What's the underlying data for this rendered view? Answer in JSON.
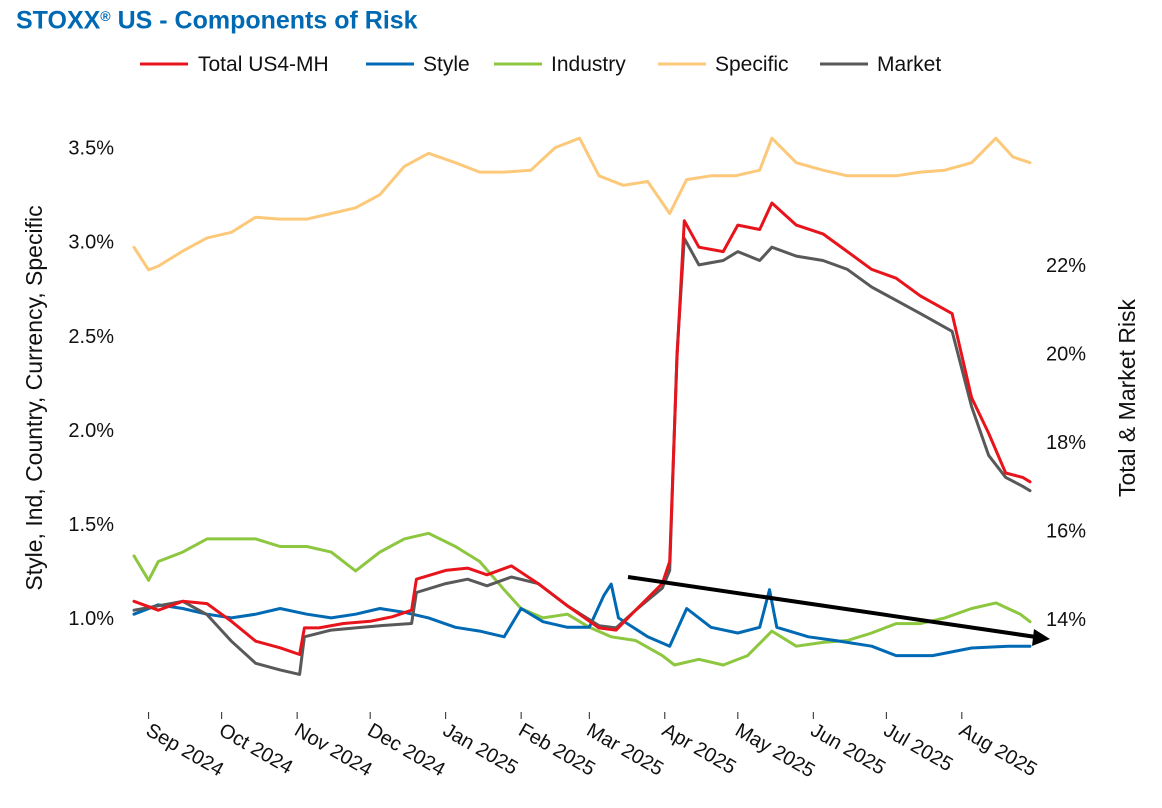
{
  "title": {
    "main": "STOXX",
    "reg": "®",
    "rest": " US - Components of Risk"
  },
  "chart_data": {
    "type": "line",
    "title": "STOXX® US - Components of Risk",
    "ylabel_left": "Style, Ind, Country, Currency, Specific",
    "ylabel_right": "Total & Market Risk",
    "left_axis": {
      "ylim": [
        0.5,
        3.7
      ],
      "ticks": [
        1.0,
        1.5,
        2.0,
        2.5,
        3.0,
        3.5
      ],
      "tick_labels": [
        "1.0%",
        "1.5%",
        "2.0%",
        "2.5%",
        "3.0%",
        "3.5%"
      ]
    },
    "right_axis": {
      "ylim": [
        11.9,
        25.5
      ],
      "ticks": [
        14,
        16,
        18,
        20,
        22
      ],
      "tick_labels": [
        "14%",
        "16%",
        "18%",
        "20%",
        "22%"
      ]
    },
    "x_ticks": [
      "Sep 2024",
      "Oct 2024",
      "Nov 2024",
      "Dec 2024",
      "Jan 2025",
      "Feb 2025",
      "Mar 2025",
      "Apr 2025",
      "May 2025",
      "Jun 2025",
      "Jul 2025",
      "Aug 2025"
    ],
    "legend_position": "top",
    "series": [
      {
        "name": "Total US4-MH",
        "axis": "right",
        "color": "#e8141c",
        "points": [
          [
            "2024-08-26",
            14.4
          ],
          [
            "2024-09-05",
            14.2
          ],
          [
            "2024-09-15",
            14.4
          ],
          [
            "2024-09-25",
            14.35
          ],
          [
            "2024-10-05",
            13.95
          ],
          [
            "2024-10-15",
            13.5
          ],
          [
            "2024-10-25",
            13.35
          ],
          [
            "2024-11-02",
            13.2
          ],
          [
            "2024-11-04",
            13.8
          ],
          [
            "2024-11-10",
            13.8
          ],
          [
            "2024-11-20",
            13.9
          ],
          [
            "2024-12-01",
            13.95
          ],
          [
            "2024-12-10",
            14.05
          ],
          [
            "2024-12-18",
            14.2
          ],
          [
            "2024-12-20",
            14.9
          ],
          [
            "2025-01-01",
            15.1
          ],
          [
            "2025-01-10",
            15.15
          ],
          [
            "2025-01-18",
            15.0
          ],
          [
            "2025-01-28",
            15.2
          ],
          [
            "2025-02-08",
            14.8
          ],
          [
            "2025-02-20",
            14.3
          ],
          [
            "2025-03-05",
            13.8
          ],
          [
            "2025-03-12",
            13.75
          ],
          [
            "2025-03-20",
            14.2
          ],
          [
            "2025-03-31",
            14.8
          ],
          [
            "2025-04-03",
            15.3
          ],
          [
            "2025-04-06",
            19.9
          ],
          [
            "2025-04-09",
            23.0
          ],
          [
            "2025-04-15",
            22.4
          ],
          [
            "2025-04-25",
            22.3
          ],
          [
            "2025-05-01",
            22.9
          ],
          [
            "2025-05-10",
            22.8
          ],
          [
            "2025-05-15",
            23.4
          ],
          [
            "2025-05-25",
            22.9
          ],
          [
            "2025-06-05",
            22.7
          ],
          [
            "2025-06-15",
            22.3
          ],
          [
            "2025-06-25",
            21.9
          ],
          [
            "2025-07-05",
            21.7
          ],
          [
            "2025-07-15",
            21.3
          ],
          [
            "2025-07-28",
            20.9
          ],
          [
            "2025-08-05",
            19.0
          ],
          [
            "2025-08-12",
            18.2
          ],
          [
            "2025-08-19",
            17.3
          ],
          [
            "2025-08-26",
            17.2
          ],
          [
            "2025-08-29",
            17.1
          ]
        ]
      },
      {
        "name": "Style",
        "axis": "left",
        "color": "#0069b4",
        "points": [
          [
            "2024-08-26",
            1.02
          ],
          [
            "2024-09-05",
            1.07
          ],
          [
            "2024-09-15",
            1.05
          ],
          [
            "2024-09-25",
            1.02
          ],
          [
            "2024-10-05",
            1.0
          ],
          [
            "2024-10-15",
            1.02
          ],
          [
            "2024-10-25",
            1.05
          ],
          [
            "2024-11-05",
            1.02
          ],
          [
            "2024-11-15",
            1.0
          ],
          [
            "2024-11-25",
            1.02
          ],
          [
            "2024-12-05",
            1.05
          ],
          [
            "2024-12-15",
            1.03
          ],
          [
            "2024-12-25",
            1.0
          ],
          [
            "2025-01-05",
            0.95
          ],
          [
            "2025-01-15",
            0.93
          ],
          [
            "2025-01-25",
            0.9
          ],
          [
            "2025-02-01",
            1.05
          ],
          [
            "2025-02-10",
            0.98
          ],
          [
            "2025-02-20",
            0.95
          ],
          [
            "2025-03-01",
            0.95
          ],
          [
            "2025-03-07",
            1.12
          ],
          [
            "2025-03-10",
            1.18
          ],
          [
            "2025-03-13",
            1.0
          ],
          [
            "2025-03-25",
            0.9
          ],
          [
            "2025-04-03",
            0.85
          ],
          [
            "2025-04-10",
            1.05
          ],
          [
            "2025-04-20",
            0.95
          ],
          [
            "2025-05-01",
            0.92
          ],
          [
            "2025-05-10",
            0.95
          ],
          [
            "2025-05-14",
            1.15
          ],
          [
            "2025-05-17",
            0.95
          ],
          [
            "2025-05-30",
            0.9
          ],
          [
            "2025-06-10",
            0.88
          ],
          [
            "2025-06-25",
            0.85
          ],
          [
            "2025-07-05",
            0.8
          ],
          [
            "2025-07-20",
            0.8
          ],
          [
            "2025-08-05",
            0.84
          ],
          [
            "2025-08-20",
            0.85
          ],
          [
            "2025-08-29",
            0.85
          ]
        ]
      },
      {
        "name": "Industry",
        "axis": "left",
        "color": "#8dc63f",
        "points": [
          [
            "2024-08-26",
            1.33
          ],
          [
            "2024-09-01",
            1.2
          ],
          [
            "2024-09-05",
            1.3
          ],
          [
            "2024-09-15",
            1.35
          ],
          [
            "2024-09-25",
            1.42
          ],
          [
            "2024-10-05",
            1.42
          ],
          [
            "2024-10-15",
            1.42
          ],
          [
            "2024-10-25",
            1.38
          ],
          [
            "2024-11-05",
            1.38
          ],
          [
            "2024-11-15",
            1.35
          ],
          [
            "2024-11-25",
            1.25
          ],
          [
            "2024-12-05",
            1.35
          ],
          [
            "2024-12-15",
            1.42
          ],
          [
            "2024-12-25",
            1.45
          ],
          [
            "2025-01-05",
            1.38
          ],
          [
            "2025-01-15",
            1.3
          ],
          [
            "2025-01-25",
            1.15
          ],
          [
            "2025-02-01",
            1.05
          ],
          [
            "2025-02-10",
            1.0
          ],
          [
            "2025-02-20",
            1.02
          ],
          [
            "2025-03-01",
            0.95
          ],
          [
            "2025-03-10",
            0.9
          ],
          [
            "2025-03-20",
            0.88
          ],
          [
            "2025-03-31",
            0.8
          ],
          [
            "2025-04-05",
            0.75
          ],
          [
            "2025-04-15",
            0.78
          ],
          [
            "2025-04-25",
            0.75
          ],
          [
            "2025-05-05",
            0.8
          ],
          [
            "2025-05-15",
            0.93
          ],
          [
            "2025-05-25",
            0.85
          ],
          [
            "2025-06-05",
            0.87
          ],
          [
            "2025-06-15",
            0.88
          ],
          [
            "2025-06-25",
            0.92
          ],
          [
            "2025-07-05",
            0.97
          ],
          [
            "2025-07-15",
            0.97
          ],
          [
            "2025-07-25",
            1.0
          ],
          [
            "2025-08-05",
            1.05
          ],
          [
            "2025-08-15",
            1.08
          ],
          [
            "2025-08-25",
            1.02
          ],
          [
            "2025-08-29",
            0.98
          ]
        ]
      },
      {
        "name": "Specific",
        "axis": "left",
        "color": "#fcc97a",
        "points": [
          [
            "2024-08-26",
            2.97
          ],
          [
            "2024-09-01",
            2.85
          ],
          [
            "2024-09-05",
            2.87
          ],
          [
            "2024-09-15",
            2.95
          ],
          [
            "2024-09-25",
            3.02
          ],
          [
            "2024-10-05",
            3.05
          ],
          [
            "2024-10-15",
            3.13
          ],
          [
            "2024-10-25",
            3.12
          ],
          [
            "2024-11-05",
            3.12
          ],
          [
            "2024-11-15",
            3.15
          ],
          [
            "2024-11-25",
            3.18
          ],
          [
            "2024-12-05",
            3.25
          ],
          [
            "2024-12-15",
            3.4
          ],
          [
            "2024-12-25",
            3.47
          ],
          [
            "2025-01-05",
            3.42
          ],
          [
            "2025-01-15",
            3.37
          ],
          [
            "2025-01-25",
            3.37
          ],
          [
            "2025-02-05",
            3.38
          ],
          [
            "2025-02-15",
            3.5
          ],
          [
            "2025-02-25",
            3.55
          ],
          [
            "2025-03-05",
            3.35
          ],
          [
            "2025-03-15",
            3.3
          ],
          [
            "2025-03-25",
            3.32
          ],
          [
            "2025-04-03",
            3.15
          ],
          [
            "2025-04-10",
            3.33
          ],
          [
            "2025-04-20",
            3.35
          ],
          [
            "2025-04-30",
            3.35
          ],
          [
            "2025-05-10",
            3.38
          ],
          [
            "2025-05-15",
            3.55
          ],
          [
            "2025-05-25",
            3.42
          ],
          [
            "2025-06-05",
            3.38
          ],
          [
            "2025-06-15",
            3.35
          ],
          [
            "2025-06-25",
            3.35
          ],
          [
            "2025-07-05",
            3.35
          ],
          [
            "2025-07-15",
            3.37
          ],
          [
            "2025-07-25",
            3.38
          ],
          [
            "2025-08-05",
            3.42
          ],
          [
            "2025-08-15",
            3.55
          ],
          [
            "2025-08-22",
            3.45
          ],
          [
            "2025-08-29",
            3.42
          ]
        ]
      },
      {
        "name": "Market",
        "axis": "right",
        "color": "#595959",
        "points": [
          [
            "2024-08-26",
            14.2
          ],
          [
            "2024-09-05",
            14.3
          ],
          [
            "2024-09-15",
            14.4
          ],
          [
            "2024-09-25",
            14.1
          ],
          [
            "2024-10-05",
            13.5
          ],
          [
            "2024-10-15",
            13.0
          ],
          [
            "2024-10-25",
            12.85
          ],
          [
            "2024-11-02",
            12.75
          ],
          [
            "2024-11-04",
            13.6
          ],
          [
            "2024-11-15",
            13.75
          ],
          [
            "2024-11-25",
            13.8
          ],
          [
            "2024-12-05",
            13.85
          ],
          [
            "2024-12-18",
            13.9
          ],
          [
            "2024-12-20",
            14.6
          ],
          [
            "2025-01-01",
            14.8
          ],
          [
            "2025-01-10",
            14.9
          ],
          [
            "2025-01-18",
            14.75
          ],
          [
            "2025-01-28",
            14.95
          ],
          [
            "2025-02-08",
            14.8
          ],
          [
            "2025-02-20",
            14.3
          ],
          [
            "2025-03-05",
            13.85
          ],
          [
            "2025-03-12",
            13.8
          ],
          [
            "2025-03-20",
            14.2
          ],
          [
            "2025-03-31",
            14.7
          ],
          [
            "2025-04-03",
            15.1
          ],
          [
            "2025-04-06",
            20.0
          ],
          [
            "2025-04-09",
            22.6
          ],
          [
            "2025-04-15",
            22.0
          ],
          [
            "2025-04-25",
            22.1
          ],
          [
            "2025-05-01",
            22.3
          ],
          [
            "2025-05-10",
            22.1
          ],
          [
            "2025-05-15",
            22.4
          ],
          [
            "2025-05-25",
            22.2
          ],
          [
            "2025-06-05",
            22.1
          ],
          [
            "2025-06-15",
            21.9
          ],
          [
            "2025-06-25",
            21.5
          ],
          [
            "2025-07-05",
            21.2
          ],
          [
            "2025-07-15",
            20.9
          ],
          [
            "2025-07-28",
            20.5
          ],
          [
            "2025-08-05",
            18.8
          ],
          [
            "2025-08-12",
            17.7
          ],
          [
            "2025-08-19",
            17.2
          ],
          [
            "2025-08-26",
            17.0
          ],
          [
            "2025-08-29",
            16.9
          ]
        ]
      }
    ]
  }
}
